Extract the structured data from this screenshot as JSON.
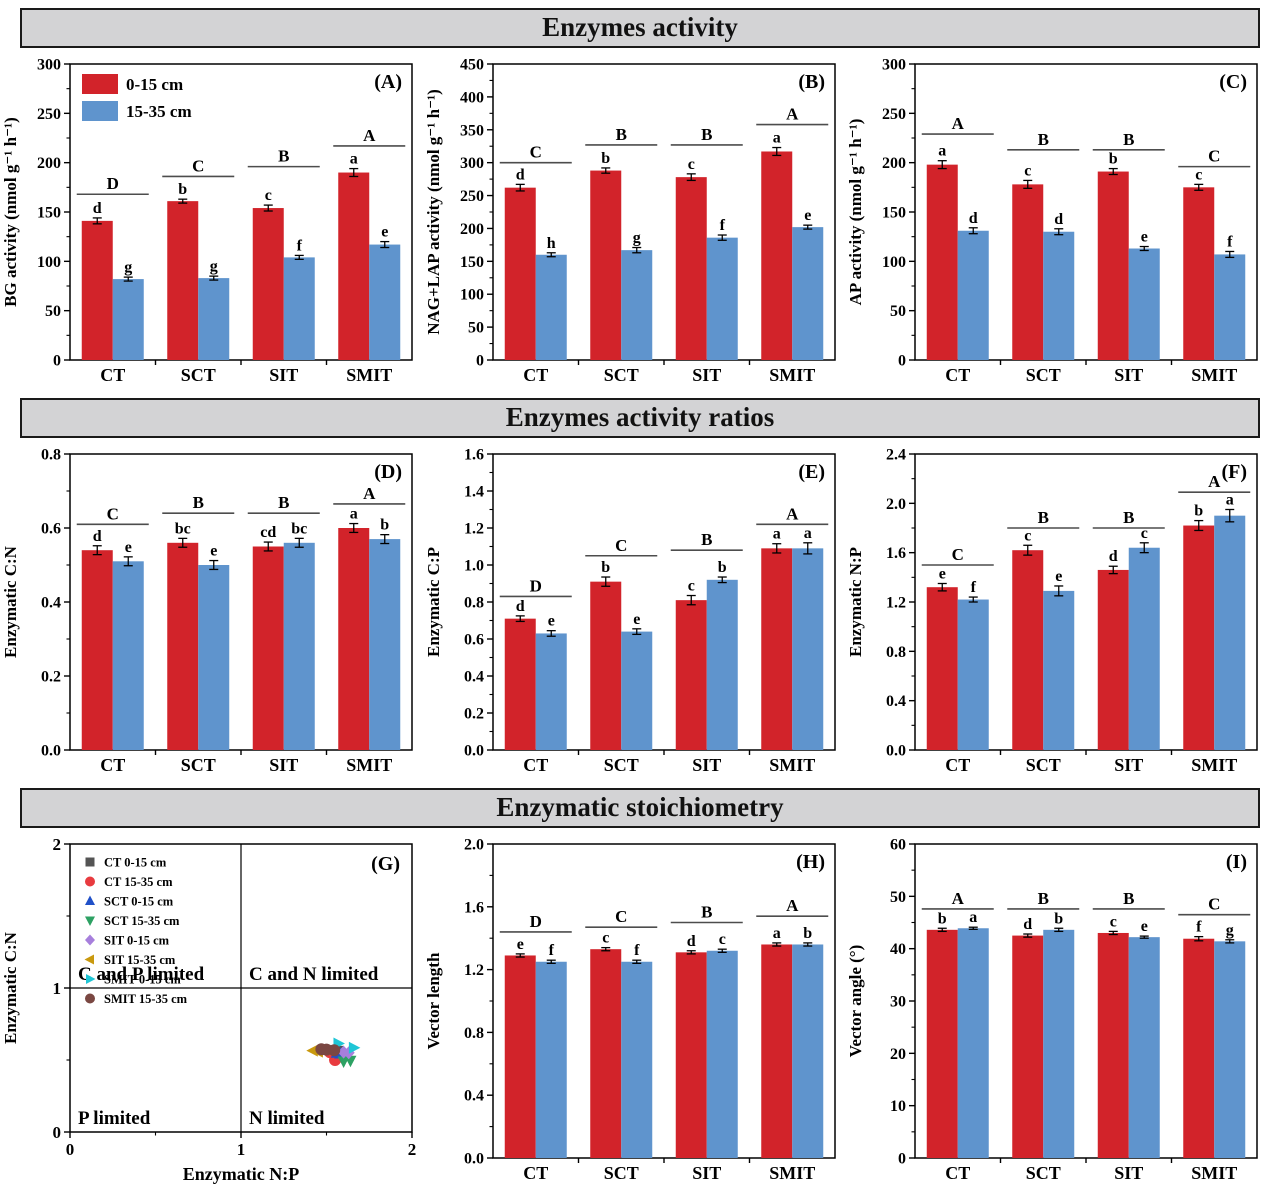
{
  "headers": [
    {
      "title": "Enzymes activity"
    },
    {
      "title": "Enzymes activity ratios"
    },
    {
      "title": "Enzymatic stoichiometry"
    }
  ],
  "palette": {
    "red": "#d2232a",
    "blue": "#5f94cd",
    "axis": "#000000",
    "header_bg": "#d3d3d5",
    "sig_line": "#4d4d4d"
  },
  "depth_legend": [
    {
      "label": "0-15 cm",
      "color_key": "red"
    },
    {
      "label": "15-35 cm",
      "color_key": "blue"
    }
  ],
  "layout_rows": [
    [
      "A",
      "B",
      "C"
    ],
    [
      "D",
      "E",
      "F"
    ],
    [
      "G",
      "H",
      "I"
    ]
  ],
  "chart_data": [
    {
      "id": "A",
      "type": "bar",
      "tag": "(A)",
      "ylabel": "BG activity (nmol g⁻¹ h⁻¹)",
      "ylim": [
        0,
        300
      ],
      "ystep": 50,
      "ydecimals": 0,
      "show_legend": true,
      "categories": [
        "CT",
        "SCT",
        "SIT",
        "SMIT"
      ],
      "series": [
        {
          "name": "0-15 cm",
          "color_key": "red",
          "values": [
            141,
            161,
            154,
            190
          ],
          "errors": [
            3,
            2,
            3,
            4
          ],
          "letters": [
            "d",
            "b",
            "c",
            "a"
          ]
        },
        {
          "name": "15-35 cm",
          "color_key": "blue",
          "values": [
            82,
            83,
            104,
            117
          ],
          "errors": [
            2,
            2,
            2,
            3
          ],
          "letters": [
            "g",
            "g",
            "f",
            "e"
          ]
        }
      ],
      "group_sig": [
        {
          "label": "D",
          "y": 168
        },
        {
          "label": "C",
          "y": 186
        },
        {
          "label": "B",
          "y": 196
        },
        {
          "label": "A",
          "y": 217
        }
      ]
    },
    {
      "id": "B",
      "type": "bar",
      "tag": "(B)",
      "ylabel": "NAG+LAP activity (nmol g⁻¹ h⁻¹)",
      "ylim": [
        0,
        450
      ],
      "ystep": 50,
      "ydecimals": 0,
      "show_legend": false,
      "categories": [
        "CT",
        "SCT",
        "SIT",
        "SMIT"
      ],
      "series": [
        {
          "name": "0-15 cm",
          "color_key": "red",
          "values": [
            262,
            288,
            278,
            317
          ],
          "errors": [
            5,
            4,
            5,
            6
          ],
          "letters": [
            "d",
            "b",
            "c",
            "a"
          ]
        },
        {
          "name": "15-35 cm",
          "color_key": "blue",
          "values": [
            160,
            167,
            186,
            202
          ],
          "errors": [
            3,
            4,
            4,
            3
          ],
          "letters": [
            "h",
            "g",
            "f",
            "e"
          ]
        }
      ],
      "group_sig": [
        {
          "label": "C",
          "y": 300
        },
        {
          "label": "B",
          "y": 327
        },
        {
          "label": "B",
          "y": 327
        },
        {
          "label": "A",
          "y": 358
        }
      ]
    },
    {
      "id": "C",
      "type": "bar",
      "tag": "(C)",
      "ylabel": "AP activity (nmol g⁻¹ h⁻¹)",
      "ylim": [
        0,
        300
      ],
      "ystep": 50,
      "ydecimals": 0,
      "show_legend": false,
      "categories": [
        "CT",
        "SCT",
        "SIT",
        "SMIT"
      ],
      "series": [
        {
          "name": "0-15 cm",
          "color_key": "red",
          "values": [
            198,
            178,
            191,
            175
          ],
          "errors": [
            4,
            4,
            3,
            3
          ],
          "letters": [
            "a",
            "c",
            "b",
            "c"
          ]
        },
        {
          "name": "15-35 cm",
          "color_key": "blue",
          "values": [
            131,
            130,
            113,
            107
          ],
          "errors": [
            3,
            3,
            2,
            3
          ],
          "letters": [
            "d",
            "d",
            "e",
            "f"
          ]
        }
      ],
      "group_sig": [
        {
          "label": "A",
          "y": 229
        },
        {
          "label": "B",
          "y": 213
        },
        {
          "label": "B",
          "y": 213
        },
        {
          "label": "C",
          "y": 196
        }
      ]
    },
    {
      "id": "D",
      "type": "bar",
      "tag": "(D)",
      "ylabel": "Enzymatic C:N",
      "ylim": [
        0,
        0.8
      ],
      "ystep": 0.2,
      "ydecimals": 1,
      "show_legend": false,
      "categories": [
        "CT",
        "SCT",
        "SIT",
        "SMIT"
      ],
      "series": [
        {
          "name": "0-15 cm",
          "color_key": "red",
          "values": [
            0.54,
            0.56,
            0.55,
            0.6
          ],
          "errors": [
            0.012,
            0.012,
            0.012,
            0.012
          ],
          "letters": [
            "d",
            "bc",
            "cd",
            "a"
          ]
        },
        {
          "name": "15-35 cm",
          "color_key": "blue",
          "values": [
            0.51,
            0.5,
            0.56,
            0.57
          ],
          "errors": [
            0.012,
            0.012,
            0.012,
            0.012
          ],
          "letters": [
            "e",
            "e",
            "bc",
            "b"
          ]
        }
      ],
      "group_sig": [
        {
          "label": "C",
          "y": 0.61
        },
        {
          "label": "B",
          "y": 0.64
        },
        {
          "label": "B",
          "y": 0.64
        },
        {
          "label": "A",
          "y": 0.665
        }
      ]
    },
    {
      "id": "E",
      "type": "bar",
      "tag": "(E)",
      "ylabel": "Enzymatic C:P",
      "ylim": [
        0,
        1.6
      ],
      "ystep": 0.2,
      "ydecimals": 1,
      "show_legend": false,
      "categories": [
        "CT",
        "SCT",
        "SIT",
        "SMIT"
      ],
      "series": [
        {
          "name": "0-15 cm",
          "color_key": "red",
          "values": [
            0.71,
            0.91,
            0.81,
            1.09
          ],
          "errors": [
            0.015,
            0.025,
            0.025,
            0.025
          ],
          "letters": [
            "d",
            "b",
            "c",
            "a"
          ]
        },
        {
          "name": "15-35 cm",
          "color_key": "blue",
          "values": [
            0.63,
            0.64,
            0.92,
            1.09
          ],
          "errors": [
            0.015,
            0.015,
            0.015,
            0.03
          ],
          "letters": [
            "e",
            "e",
            "b",
            "a"
          ]
        }
      ],
      "group_sig": [
        {
          "label": "D",
          "y": 0.83
        },
        {
          "label": "C",
          "y": 1.05
        },
        {
          "label": "B",
          "y": 1.08
        },
        {
          "label": "A",
          "y": 1.22
        }
      ]
    },
    {
      "id": "F",
      "type": "bar",
      "tag": "(F)",
      "ylabel": "Enzymatic N:P",
      "ylim": [
        0,
        2.4
      ],
      "ystep": 0.4,
      "ydecimals": 1,
      "show_legend": false,
      "categories": [
        "CT",
        "SCT",
        "SIT",
        "SMIT"
      ],
      "series": [
        {
          "name": "0-15 cm",
          "color_key": "red",
          "values": [
            1.32,
            1.62,
            1.46,
            1.82
          ],
          "errors": [
            0.03,
            0.04,
            0.03,
            0.04
          ],
          "letters": [
            "e",
            "c",
            "d",
            "b"
          ]
        },
        {
          "name": "15-35 cm",
          "color_key": "blue",
          "values": [
            1.22,
            1.29,
            1.64,
            1.9
          ],
          "errors": [
            0.02,
            0.04,
            0.04,
            0.05
          ],
          "letters": [
            "f",
            "e",
            "c",
            "a"
          ]
        }
      ],
      "group_sig": [
        {
          "label": "C",
          "y": 1.5
        },
        {
          "label": "B",
          "y": 1.8
        },
        {
          "label": "B",
          "y": 1.8
        },
        {
          "label": "A",
          "y": 2.09
        }
      ]
    },
    {
      "id": "G",
      "type": "scatter",
      "tag": "(G)",
      "xlabel": "Enzymatic N:P",
      "ylabel": "Enzymatic C:N",
      "xlim": [
        0,
        2
      ],
      "ylim": [
        0,
        2
      ],
      "xticks": [
        0,
        1,
        2
      ],
      "yticks": [
        0,
        1,
        2
      ],
      "ref_lines": {
        "x": 1,
        "y": 1
      },
      "quadrants": {
        "top_left": "C and P limited",
        "top_right": "C and N limited",
        "bottom_left": "P limited",
        "bottom_right": "N limited"
      },
      "series": [
        {
          "name": "CT 0-15 cm",
          "marker": "square",
          "color": "#545454",
          "points": [
            [
              1.54,
              0.565
            ],
            [
              1.57,
              0.56
            ]
          ]
        },
        {
          "name": "CT 15-35 cm",
          "marker": "circle",
          "color": "#e83b3f",
          "points": [
            [
              1.55,
              0.5
            ],
            [
              1.52,
              0.555
            ]
          ]
        },
        {
          "name": "SCT 0-15 cm",
          "marker": "triangle-up",
          "color": "#2050c8",
          "points": [
            [
              1.56,
              0.55
            ],
            [
              1.58,
              0.545
            ]
          ]
        },
        {
          "name": "SCT 15-35 cm",
          "marker": "triangle-down",
          "color": "#2da163",
          "points": [
            [
              1.6,
              0.49
            ],
            [
              1.64,
              0.495
            ]
          ]
        },
        {
          "name": "SIT 0-15 cm",
          "marker": "diamond",
          "color": "#a77fdc",
          "points": [
            [
              1.6,
              0.555
            ],
            [
              1.63,
              0.55
            ]
          ]
        },
        {
          "name": "SIT 15-35 cm",
          "marker": "triangle-left",
          "color": "#c9990e",
          "points": [
            [
              1.42,
              0.565
            ],
            [
              1.45,
              0.558
            ]
          ]
        },
        {
          "name": "SMIT 0-15 cm",
          "marker": "triangle-right",
          "color": "#1fc6d6",
          "points": [
            [
              1.57,
              0.615
            ],
            [
              1.66,
              0.585
            ]
          ]
        },
        {
          "name": "SMIT 15-35 cm",
          "marker": "circle",
          "color": "#7a4742",
          "points": [
            [
              1.47,
              0.575
            ],
            [
              1.5,
              0.572
            ],
            [
              1.545,
              0.568
            ]
          ]
        }
      ]
    },
    {
      "id": "H",
      "type": "bar",
      "tag": "(H)",
      "ylabel": "Vector length",
      "ylim": [
        0,
        2.0
      ],
      "ystep": 0.4,
      "ydecimals": 1,
      "show_legend": false,
      "categories": [
        "CT",
        "SCT",
        "SIT",
        "SMIT"
      ],
      "series": [
        {
          "name": "0-15 cm",
          "color_key": "red",
          "values": [
            1.29,
            1.33,
            1.31,
            1.36
          ],
          "errors": [
            0.01,
            0.01,
            0.01,
            0.01
          ],
          "letters": [
            "e",
            "c",
            "d",
            "a"
          ]
        },
        {
          "name": "15-35 cm",
          "color_key": "blue",
          "values": [
            1.25,
            1.25,
            1.32,
            1.36
          ],
          "errors": [
            0.01,
            0.01,
            0.01,
            0.01
          ],
          "letters": [
            "f",
            "f",
            "c",
            "b"
          ]
        }
      ],
      "group_sig": [
        {
          "label": "D",
          "y": 1.44
        },
        {
          "label": "C",
          "y": 1.47
        },
        {
          "label": "B",
          "y": 1.5
        },
        {
          "label": "A",
          "y": 1.54
        }
      ]
    },
    {
      "id": "I",
      "type": "bar",
      "tag": "(I)",
      "ylabel": "Vector angle (°)",
      "ylim": [
        0,
        60
      ],
      "ystep": 10,
      "ydecimals": 0,
      "show_legend": false,
      "categories": [
        "CT",
        "SCT",
        "SIT",
        "SMIT"
      ],
      "series": [
        {
          "name": "0-15 cm",
          "color_key": "red",
          "values": [
            43.6,
            42.5,
            43.0,
            41.9
          ],
          "errors": [
            0.3,
            0.3,
            0.3,
            0.4
          ],
          "letters": [
            "b",
            "d",
            "c",
            "f"
          ]
        },
        {
          "name": "15-35 cm",
          "color_key": "blue",
          "values": [
            43.9,
            43.6,
            42.2,
            41.4
          ],
          "errors": [
            0.2,
            0.3,
            0.2,
            0.3
          ],
          "letters": [
            "a",
            "b",
            "e",
            "g"
          ]
        }
      ],
      "group_sig": [
        {
          "label": "A",
          "y": 47.6
        },
        {
          "label": "B",
          "y": 47.6
        },
        {
          "label": "B",
          "y": 47.6
        },
        {
          "label": "C",
          "y": 46.5
        }
      ]
    }
  ]
}
